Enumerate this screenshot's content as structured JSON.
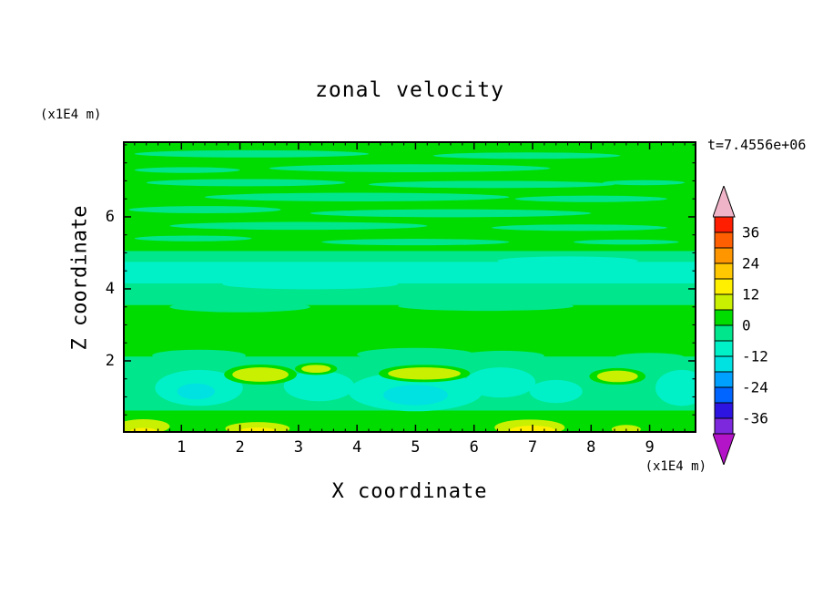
{
  "chart_data": {
    "type": "heatmap",
    "subtype": "filled-contour",
    "title": "zonal velocity",
    "xlabel": "X coordinate",
    "ylabel": "Z coordinate",
    "x_axis_unit": "(x1E4 m)",
    "y_axis_unit": "(x1E4 m)",
    "annotation": "t=7.4556e+06",
    "xlim": [
      0,
      9.8
    ],
    "ylim": [
      0,
      8.1
    ],
    "x_ticks": [
      1,
      2,
      3,
      4,
      5,
      6,
      7,
      8,
      9
    ],
    "y_ticks": [
      2,
      4,
      6
    ],
    "x_minor_step": 0.2,
    "y_minor_step": 0.5,
    "contour_interval": 6,
    "grid": false,
    "colorbar": {
      "position": "right",
      "labels": [
        36,
        24,
        12,
        0,
        -12,
        -24,
        -36
      ],
      "top_arrow_color": "#f0b4c8",
      "bottom_arrow_color": "#b414c8",
      "levels_top_to_bottom": [
        {
          "min": 36,
          "max": 42,
          "color": "#ff1e00"
        },
        {
          "min": 30,
          "max": 36,
          "color": "#ff5f00"
        },
        {
          "min": 24,
          "max": 30,
          "color": "#ff9600"
        },
        {
          "min": 18,
          "max": 24,
          "color": "#ffc800"
        },
        {
          "min": 12,
          "max": 18,
          "color": "#fff000"
        },
        {
          "min": 6,
          "max": 12,
          "color": "#c8f000"
        },
        {
          "min": 0,
          "max": 6,
          "color": "#00dc00"
        },
        {
          "min": -6,
          "max": 0,
          "color": "#00e68c"
        },
        {
          "min": -12,
          "max": -6,
          "color": "#00f0c8"
        },
        {
          "min": -18,
          "max": -12,
          "color": "#00e1e1"
        },
        {
          "min": -24,
          "max": -18,
          "color": "#00a0ff"
        },
        {
          "min": -30,
          "max": -24,
          "color": "#0064ff"
        },
        {
          "min": -36,
          "max": -30,
          "color": "#2d14e1"
        },
        {
          "min": -42,
          "max": -36,
          "color": "#7d28dc"
        }
      ]
    },
    "field": {
      "background_level": "0..6",
      "shapes": [
        {
          "kind": "ellipse",
          "level": "-6..0",
          "cx": 2.2,
          "cz": 7.75,
          "rx": 2.0,
          "rz": 0.1
        },
        {
          "kind": "ellipse",
          "level": "-6..0",
          "cx": 6.9,
          "cz": 7.7,
          "rx": 1.6,
          "rz": 0.09
        },
        {
          "kind": "ellipse",
          "level": "-6..0",
          "cx": 4.9,
          "cz": 7.35,
          "rx": 2.4,
          "rz": 0.11
        },
        {
          "kind": "ellipse",
          "level": "-6..0",
          "cx": 1.1,
          "cz": 7.3,
          "rx": 0.9,
          "rz": 0.08
        },
        {
          "kind": "ellipse",
          "level": "-6..0",
          "cx": 2.1,
          "cz": 6.95,
          "rx": 1.7,
          "rz": 0.1
        },
        {
          "kind": "ellipse",
          "level": "-6..0",
          "cx": 6.3,
          "cz": 6.9,
          "rx": 2.1,
          "rz": 0.1
        },
        {
          "kind": "ellipse",
          "level": "-6..0",
          "cx": 8.9,
          "cz": 6.95,
          "rx": 0.7,
          "rz": 0.07
        },
        {
          "kind": "ellipse",
          "level": "-6..0",
          "cx": 4.0,
          "cz": 6.55,
          "rx": 2.6,
          "rz": 0.12
        },
        {
          "kind": "ellipse",
          "level": "-6..0",
          "cx": 8.0,
          "cz": 6.5,
          "rx": 1.3,
          "rz": 0.09
        },
        {
          "kind": "ellipse",
          "level": "-6..0",
          "cx": 1.4,
          "cz": 6.2,
          "rx": 1.3,
          "rz": 0.1
        },
        {
          "kind": "ellipse",
          "level": "-6..0",
          "cx": 5.6,
          "cz": 6.1,
          "rx": 2.4,
          "rz": 0.11
        },
        {
          "kind": "ellipse",
          "level": "-6..0",
          "cx": 3.0,
          "cz": 5.75,
          "rx": 2.2,
          "rz": 0.11
        },
        {
          "kind": "ellipse",
          "level": "-6..0",
          "cx": 7.8,
          "cz": 5.7,
          "rx": 1.5,
          "rz": 0.09
        },
        {
          "kind": "ellipse",
          "level": "-6..0",
          "cx": 1.2,
          "cz": 5.4,
          "rx": 1.0,
          "rz": 0.08
        },
        {
          "kind": "ellipse",
          "level": "-6..0",
          "cx": 5.0,
          "cz": 5.3,
          "rx": 1.6,
          "rz": 0.09
        },
        {
          "kind": "ellipse",
          "level": "-6..0",
          "cx": 8.6,
          "cz": 5.3,
          "rx": 0.9,
          "rz": 0.07
        },
        {
          "kind": "rect",
          "level": "-6..0",
          "x": 0,
          "z": 3.55,
          "w": 9.8,
          "h": 1.5
        },
        {
          "kind": "ellipse",
          "level": "-6..0",
          "cx": 2.0,
          "cz": 3.5,
          "rx": 1.2,
          "rz": 0.15
        },
        {
          "kind": "ellipse",
          "level": "-6..0",
          "cx": 6.2,
          "cz": 3.52,
          "rx": 1.5,
          "rz": 0.13
        },
        {
          "kind": "rect",
          "level": "-12..-6",
          "x": 0,
          "z": 4.15,
          "w": 9.8,
          "h": 0.6
        },
        {
          "kind": "ellipse",
          "level": "-12..-6",
          "cx": 3.2,
          "cz": 4.13,
          "rx": 1.5,
          "rz": 0.14
        },
        {
          "kind": "ellipse",
          "level": "-12..-6",
          "cx": 7.6,
          "cz": 4.78,
          "rx": 1.2,
          "rz": 0.12
        },
        {
          "kind": "rect",
          "level": "-6..0",
          "x": 0,
          "z": 0.62,
          "w": 9.8,
          "h": 1.5
        },
        {
          "kind": "ellipse",
          "level": "-6..0",
          "cx": 1.3,
          "cz": 2.15,
          "rx": 0.8,
          "rz": 0.16
        },
        {
          "kind": "ellipse",
          "level": "-6..0",
          "cx": 5.0,
          "cz": 2.18,
          "rx": 1.0,
          "rz": 0.18
        },
        {
          "kind": "ellipse",
          "level": "-6..0",
          "cx": 6.5,
          "cz": 2.14,
          "rx": 0.7,
          "rz": 0.14
        },
        {
          "kind": "ellipse",
          "level": "-6..0",
          "cx": 9.0,
          "cz": 2.1,
          "rx": 0.6,
          "rz": 0.12
        },
        {
          "kind": "ellipse",
          "level": "-12..-6",
          "cx": 1.3,
          "cz": 1.25,
          "rx": 0.75,
          "rz": 0.5
        },
        {
          "kind": "ellipse",
          "level": "-12..-6",
          "cx": 3.35,
          "cz": 1.3,
          "rx": 0.6,
          "rz": 0.42
        },
        {
          "kind": "ellipse",
          "level": "-12..-6",
          "cx": 5.0,
          "cz": 1.15,
          "rx": 1.15,
          "rz": 0.55
        },
        {
          "kind": "ellipse",
          "level": "-12..-6",
          "cx": 6.45,
          "cz": 1.4,
          "rx": 0.6,
          "rz": 0.42
        },
        {
          "kind": "ellipse",
          "level": "-12..-6",
          "cx": 7.4,
          "cz": 1.15,
          "rx": 0.45,
          "rz": 0.32
        },
        {
          "kind": "ellipse",
          "level": "-12..-6",
          "cx": 9.55,
          "cz": 1.25,
          "rx": 0.45,
          "rz": 0.5
        },
        {
          "kind": "ellipse",
          "level": "-18..-12",
          "cx": 5.0,
          "cz": 1.05,
          "rx": 0.55,
          "rz": 0.28
        },
        {
          "kind": "ellipse",
          "level": "-18..-12",
          "cx": 1.25,
          "cz": 1.15,
          "rx": 0.32,
          "rz": 0.22
        },
        {
          "kind": "ellipse",
          "level": "0..6",
          "cx": 2.35,
          "cz": 1.62,
          "rx": 0.62,
          "rz": 0.28
        },
        {
          "kind": "ellipse",
          "level": "0..6",
          "cx": 3.3,
          "cz": 1.78,
          "rx": 0.36,
          "rz": 0.17
        },
        {
          "kind": "ellipse",
          "level": "0..6",
          "cx": 5.15,
          "cz": 1.65,
          "rx": 0.78,
          "rz": 0.24
        },
        {
          "kind": "ellipse",
          "level": "0..6",
          "cx": 8.45,
          "cz": 1.57,
          "rx": 0.48,
          "rz": 0.23
        },
        {
          "kind": "ellipse",
          "level": "6..12",
          "cx": 2.35,
          "cz": 1.62,
          "rx": 0.48,
          "rz": 0.2
        },
        {
          "kind": "ellipse",
          "level": "6..12",
          "cx": 3.3,
          "cz": 1.78,
          "rx": 0.25,
          "rz": 0.11
        },
        {
          "kind": "ellipse",
          "level": "6..12",
          "cx": 5.15,
          "cz": 1.65,
          "rx": 0.62,
          "rz": 0.17
        },
        {
          "kind": "ellipse",
          "level": "6..12",
          "cx": 8.45,
          "cz": 1.57,
          "rx": 0.35,
          "rz": 0.16
        },
        {
          "kind": "ellipse",
          "level": "6..12",
          "cx": 0.35,
          "cz": 0.18,
          "rx": 0.45,
          "rz": 0.2
        },
        {
          "kind": "ellipse",
          "level": "6..12",
          "cx": 2.3,
          "cz": 0.12,
          "rx": 0.55,
          "rz": 0.18
        },
        {
          "kind": "ellipse",
          "level": "6..12",
          "cx": 6.95,
          "cz": 0.15,
          "rx": 0.6,
          "rz": 0.22
        },
        {
          "kind": "ellipse",
          "level": "6..12",
          "cx": 8.6,
          "cz": 0.1,
          "rx": 0.25,
          "rz": 0.12
        },
        {
          "kind": "ellipse",
          "level": "12..18",
          "cx": 2.3,
          "cz": 0.05,
          "rx": 0.32,
          "rz": 0.1
        },
        {
          "kind": "ellipse",
          "level": "12..18",
          "cx": 7.0,
          "cz": 0.08,
          "rx": 0.38,
          "rz": 0.12
        },
        {
          "kind": "ellipse",
          "level": "12..18",
          "cx": 0.35,
          "cz": 0.06,
          "rx": 0.22,
          "rz": 0.08
        }
      ]
    }
  }
}
